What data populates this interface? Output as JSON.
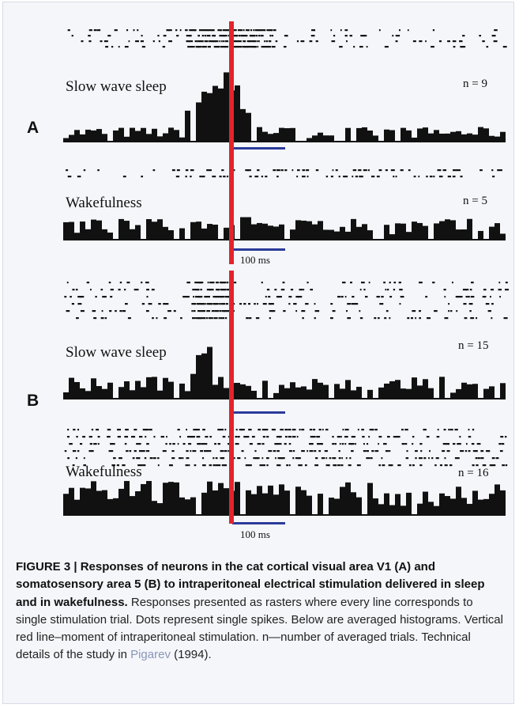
{
  "figure": {
    "panels": [
      {
        "label": "A",
        "rows": [
          {
            "condition": "Slow wave sleep",
            "n_text": "n = 9",
            "raster_trials": 4,
            "histogram": {
              "baseline": 3,
              "response_peak": 19,
              "response_start_bin": 22,
              "response_end_bin": 38
            }
          },
          {
            "condition": "Wakefulness",
            "n_text": "n = 5",
            "raster_trials": 2,
            "histogram": {
              "baseline": 5,
              "response_peak": 7,
              "response_start_bin": 20,
              "response_end_bin": 56
            }
          }
        ],
        "scale_bar_label": "100 ms"
      },
      {
        "label": "B",
        "rows": [
          {
            "condition": "Slow wave sleep",
            "n_text": "n = 15",
            "raster_trials": 6,
            "histogram": {
              "baseline": 5,
              "response_peak": 19,
              "response_start_bin": 23,
              "response_end_bin": 30
            }
          },
          {
            "condition": "Wakefulness",
            "n_text": "n = 16",
            "raster_trials": 6,
            "histogram": {
              "baseline": 8,
              "response_peak": 10,
              "response_start_bin": 20,
              "response_end_bin": 56
            }
          }
        ],
        "scale_bar_label": "100 ms"
      }
    ],
    "colors": {
      "stimulus_line": "#e3242b",
      "scale_bar": "#2a3a9a",
      "ink": "#111111",
      "background": "#f5f6fa"
    }
  },
  "caption": {
    "bold": "FIGURE 3 | Responses of neurons in the cat cortical visual area V1 (A) and somatosensory area 5 (B) to intraperitoneal electrical stimulation delivered in sleep and in wakefulness.",
    "body": " Responses presented as rasters where every line corresponds to single stimulation trial. Dots represent single spikes. Below are averaged histograms. Vertical red line–moment of intraperitoneal stimulation. n—number of averaged trials. Technical details of the study in ",
    "ref_link": "Pigarev",
    "ref_year_text": " (1994)."
  }
}
